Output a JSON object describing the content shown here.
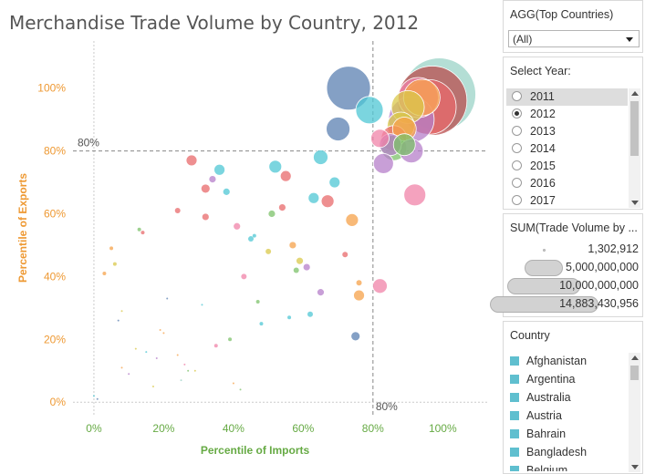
{
  "chart_data": {
    "type": "scatter",
    "title": "Merchandise Trade Volume by Country, 2012",
    "xlabel": "Percentile of Imports",
    "ylabel": "Percentile of Exports",
    "xlim": [
      -0.06,
      1.13
    ],
    "ylim": [
      -0.04,
      1.15
    ],
    "x_ticks": [
      {
        "v": 0.0,
        "label": "0%"
      },
      {
        "v": 0.2,
        "label": "20%"
      },
      {
        "v": 0.4,
        "label": "40%"
      },
      {
        "v": 0.6,
        "label": "60%"
      },
      {
        "v": 0.8,
        "label": "80%"
      },
      {
        "v": 1.0,
        "label": "100%"
      }
    ],
    "y_ticks": [
      {
        "v": 0.0,
        "label": "0%"
      },
      {
        "v": 0.2,
        "label": "20%"
      },
      {
        "v": 0.4,
        "label": "40%"
      },
      {
        "v": 0.6,
        "label": "60%"
      },
      {
        "v": 0.8,
        "label": "80%"
      },
      {
        "v": 1.0,
        "label": "100%"
      }
    ],
    "reference_lines": {
      "x": 0.8,
      "y": 0.8,
      "x_label": "80%",
      "y_label": "80%"
    },
    "grid": false,
    "colors": {
      "axis_x": "#66aa44",
      "axis_y": "#ee9933",
      "ref_line": "#888888",
      "palette": [
        "#5b80b2",
        "#4fc7d4",
        "#e8696b",
        "#f5a24a",
        "#b57fc9",
        "#7cc26a",
        "#d9c84a",
        "#f083a8",
        "#9bd3c7",
        "#ba4c4c"
      ]
    },
    "points": [
      [
        0.99,
        0.98,
        40,
        8
      ],
      [
        0.97,
        0.96,
        38,
        9
      ],
      [
        0.96,
        0.94,
        30,
        2
      ],
      [
        0.93,
        0.97,
        22,
        7
      ],
      [
        0.94,
        0.97,
        20,
        3
      ],
      [
        0.91,
        0.9,
        25,
        4
      ],
      [
        0.9,
        0.94,
        18,
        6
      ],
      [
        0.73,
        1.0,
        24,
        0
      ],
      [
        0.79,
        0.93,
        15,
        1
      ],
      [
        0.7,
        0.87,
        13,
        0
      ],
      [
        0.89,
        0.87,
        13,
        3
      ],
      [
        0.88,
        0.88,
        15,
        6
      ],
      [
        0.86,
        0.84,
        14,
        2
      ],
      [
        0.82,
        0.84,
        10,
        7
      ],
      [
        0.85,
        0.82,
        12,
        4
      ],
      [
        0.86,
        0.81,
        14,
        5
      ],
      [
        0.89,
        0.82,
        12,
        5
      ],
      [
        0.91,
        0.8,
        13,
        4
      ],
      [
        0.83,
        0.76,
        11,
        4
      ],
      [
        0.92,
        0.66,
        12,
        7
      ],
      [
        0.28,
        0.77,
        6,
        2
      ],
      [
        0.36,
        0.74,
        6,
        1
      ],
      [
        0.52,
        0.75,
        7,
        1
      ],
      [
        0.55,
        0.72,
        6,
        2
      ],
      [
        0.65,
        0.78,
        8,
        1
      ],
      [
        0.69,
        0.7,
        6,
        1
      ],
      [
        0.32,
        0.68,
        5,
        2
      ],
      [
        0.34,
        0.71,
        4,
        4
      ],
      [
        0.38,
        0.67,
        4,
        1
      ],
      [
        0.63,
        0.65,
        6,
        1
      ],
      [
        0.67,
        0.64,
        7,
        2
      ],
      [
        0.54,
        0.62,
        4,
        2
      ],
      [
        0.51,
        0.6,
        4,
        5
      ],
      [
        0.24,
        0.61,
        3,
        2
      ],
      [
        0.32,
        0.59,
        4,
        2
      ],
      [
        0.41,
        0.56,
        4,
        7
      ],
      [
        0.74,
        0.58,
        7,
        3
      ],
      [
        0.13,
        0.55,
        2,
        5
      ],
      [
        0.14,
        0.54,
        2,
        2
      ],
      [
        0.45,
        0.52,
        3,
        1
      ],
      [
        0.46,
        0.53,
        2,
        1
      ],
      [
        0.57,
        0.5,
        4,
        3
      ],
      [
        0.5,
        0.48,
        3,
        6
      ],
      [
        0.05,
        0.49,
        2,
        3
      ],
      [
        0.06,
        0.44,
        2,
        6
      ],
      [
        0.59,
        0.45,
        4,
        6
      ],
      [
        0.72,
        0.47,
        3,
        2
      ],
      [
        0.61,
        0.43,
        4,
        4
      ],
      [
        0.58,
        0.42,
        3,
        5
      ],
      [
        0.03,
        0.41,
        2,
        3
      ],
      [
        0.43,
        0.4,
        3,
        7
      ],
      [
        0.76,
        0.38,
        3,
        3
      ],
      [
        0.82,
        0.37,
        8,
        7
      ],
      [
        0.65,
        0.35,
        4,
        4
      ],
      [
        0.76,
        0.34,
        6,
        3
      ],
      [
        0.47,
        0.32,
        2,
        5
      ],
      [
        0.21,
        0.33,
        1,
        0
      ],
      [
        0.31,
        0.31,
        1,
        1
      ],
      [
        0.08,
        0.29,
        1,
        6
      ],
      [
        0.62,
        0.28,
        3,
        1
      ],
      [
        0.56,
        0.27,
        2,
        1
      ],
      [
        0.07,
        0.26,
        1,
        0
      ],
      [
        0.48,
        0.25,
        2,
        1
      ],
      [
        0.19,
        0.23,
        1,
        3
      ],
      [
        0.2,
        0.22,
        1,
        3
      ],
      [
        0.39,
        0.2,
        2,
        5
      ],
      [
        0.35,
        0.18,
        2,
        7
      ],
      [
        0.75,
        0.21,
        5,
        0
      ],
      [
        0.12,
        0.17,
        1,
        6
      ],
      [
        0.15,
        0.16,
        1,
        1
      ],
      [
        0.18,
        0.14,
        1,
        4
      ],
      [
        0.24,
        0.15,
        1,
        3
      ],
      [
        0.26,
        0.12,
        1,
        7
      ],
      [
        0.08,
        0.11,
        1,
        3
      ],
      [
        0.1,
        0.09,
        1,
        4
      ],
      [
        0.27,
        0.1,
        1,
        5
      ],
      [
        0.29,
        0.1,
        1,
        6
      ],
      [
        0.25,
        0.07,
        1,
        8
      ],
      [
        0.17,
        0.05,
        1,
        6
      ],
      [
        0.42,
        0.04,
        1,
        5
      ],
      [
        0.4,
        0.06,
        1,
        3
      ],
      [
        0.0,
        0.02,
        1,
        1
      ],
      [
        0.01,
        0.01,
        1,
        0
      ]
    ]
  },
  "filters": {
    "agg": {
      "title": "AGG(Top Countries)",
      "value": "(All)"
    },
    "year": {
      "title": "Select Year:",
      "items": [
        {
          "label": "2011",
          "checked": false
        },
        {
          "label": "2012",
          "checked": true
        },
        {
          "label": "2013",
          "checked": false
        },
        {
          "label": "2014",
          "checked": false
        },
        {
          "label": "2015",
          "checked": false
        },
        {
          "label": "2016",
          "checked": false
        },
        {
          "label": "2017",
          "checked": false
        }
      ]
    },
    "size_legend": {
      "title": "SUM(Trade Volume by ...",
      "items": [
        {
          "label": "1,302,912",
          "level": 0.0
        },
        {
          "label": "5,000,000,000",
          "level": 0.336
        },
        {
          "label": "10,000,000,000",
          "level": 0.672
        },
        {
          "label": "14,883,430,956",
          "level": 1.0
        }
      ]
    },
    "country": {
      "title": "Country",
      "swatch_color": "#5fbfcf",
      "items": [
        "Afghanistan",
        "Argentina",
        "Australia",
        "Austria",
        "Bahrain",
        "Bangladesh",
        "Belgium"
      ]
    }
  }
}
